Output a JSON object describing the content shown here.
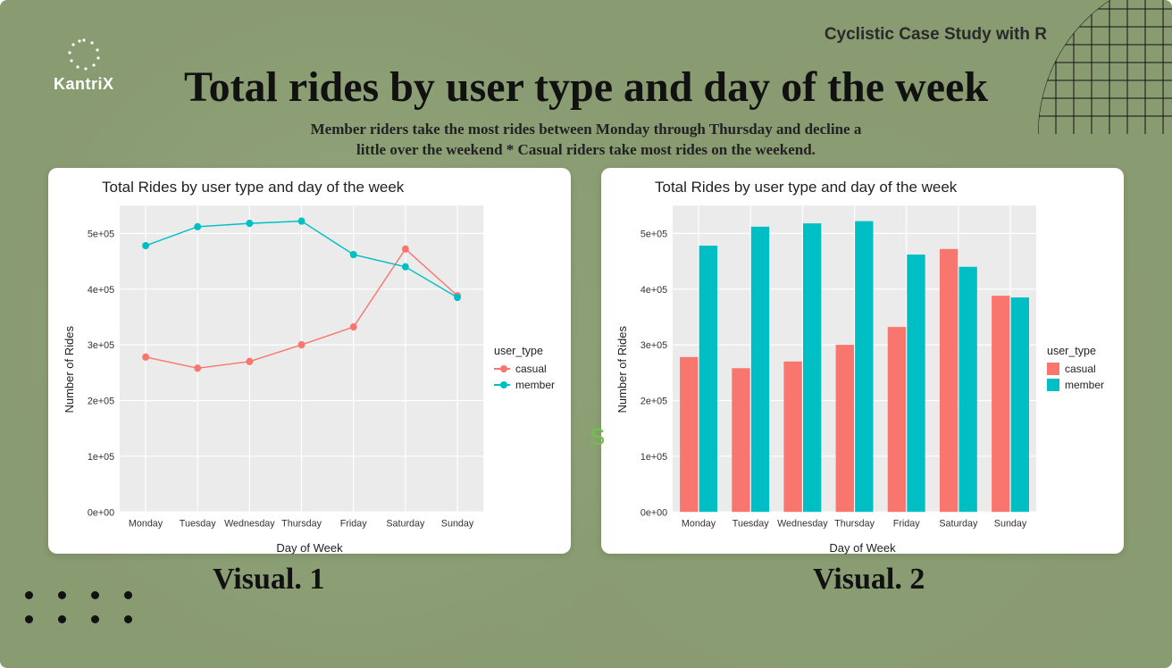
{
  "header": {
    "brand": "KantriX",
    "right_text": "Cyclistic Case Study with R"
  },
  "title": "Total rides by user type and day of the week",
  "subtitle_line1": "Member riders take the most rides between Monday through Thursday and decline a",
  "subtitle_line2": "little over the weekend * Casual riders take most rides on the weekend.",
  "decorative_letter": "S",
  "labels": {
    "visual1": "Visual. 1",
    "visual2": "Visual. 2"
  },
  "chart_common": {
    "title": "Total Rides by user type and day of the week",
    "ylabel": "Number of Rides",
    "xlabel": "Day of Week",
    "legend_title": "user_type",
    "categories": [
      "Monday",
      "Tuesday",
      "Wednesday",
      "Thursday",
      "Friday",
      "Saturday",
      "Sunday"
    ],
    "ylim": [
      0,
      550000
    ],
    "yticks": [
      0,
      100000,
      200000,
      300000,
      400000,
      500000
    ],
    "ytick_labels": [
      "0e+00",
      "1e+05",
      "2e+05",
      "3e+05",
      "4e+05",
      "5e+05"
    ],
    "panel_bg": "#ebebeb",
    "grid_color": "#ffffff",
    "tick_fontsize": 11,
    "label_fontsize": 13,
    "title_fontsize": 17,
    "series": {
      "casual": {
        "label": "casual",
        "color": "#f8766d",
        "values": [
          278000,
          258000,
          270000,
          300000,
          332000,
          472000,
          388000
        ]
      },
      "member": {
        "label": "member",
        "color": "#00bfc4",
        "values": [
          478000,
          512000,
          518000,
          522000,
          462000,
          440000,
          385000
        ]
      }
    }
  },
  "chart1": {
    "type": "line",
    "marker_size": 4,
    "line_width": 1.4
  },
  "chart2": {
    "type": "bar",
    "bar_group_width": 0.72,
    "bar_gap": 0.02
  }
}
